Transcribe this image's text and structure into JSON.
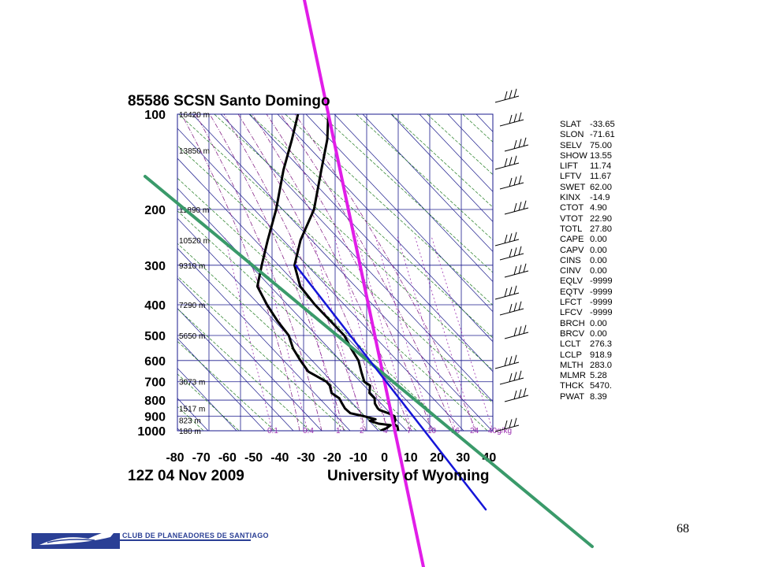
{
  "station_title": "85586 SCSN Santo Domingo",
  "date_label": "12Z 04 Nov 2009",
  "source_label": "University of Wyoming",
  "page_number": "68",
  "logo_text": "CLUB DE PLANEADORES DE SANTIAGO",
  "colors": {
    "temperature": "#000000",
    "dewpoint": "#000000",
    "isotherm_grid": "#1a1a8c",
    "dry_adiabat": "#1e7a1e",
    "moist_adiabat": "#8a2a8a",
    "mixing_ratio": "#9b30b0",
    "overlay_magenta": "#e11de8",
    "overlay_blue": "#1515d8",
    "overlay_green": "#3a9a6a",
    "logo": "#2a3f95"
  },
  "chart_data": {
    "type": "skew-t",
    "xlabel": "",
    "ylabel": "",
    "xlim": [
      -80,
      40
    ],
    "x_ticks": [
      "-80",
      "-70",
      "-60",
      "-50",
      "-40",
      "-30",
      "-20",
      "-10",
      "0",
      "10",
      "20",
      "30",
      "40"
    ],
    "y_scale": "log",
    "ylim": [
      1000,
      100
    ],
    "pressure_levels": [
      {
        "p": 100,
        "label": "100",
        "height": "16420 m"
      },
      {
        "p": 200,
        "label": "200",
        "height": "11890 m"
      },
      {
        "p": 300,
        "label": "300",
        "height": "9310 m"
      },
      {
        "p": 400,
        "label": "400",
        "height": "7290 m"
      },
      {
        "p": 500,
        "label": "500",
        "height": "5650 m"
      },
      {
        "p": 600,
        "label": "600",
        "height": ""
      },
      {
        "p": 700,
        "label": "700",
        "height": "3073 m"
      },
      {
        "p": 800,
        "label": "800",
        "height": ""
      },
      {
        "p": 850,
        "label": "",
        "height": "1517 m"
      },
      {
        "p": 900,
        "label": "900",
        "height": ""
      },
      {
        "p": 925,
        "label": "",
        "height": "823 m"
      },
      {
        "p": 1000,
        "label": "1000",
        "height": "180 m"
      }
    ],
    "extra_height_labels": [
      {
        "p": 130,
        "height": "13850 m"
      },
      {
        "p": 250,
        "height": "10520 m"
      }
    ],
    "mixing_ratio_labels": [
      "0.1",
      "0.4",
      "1",
      "2",
      "4",
      "7",
      "10",
      "16",
      "24",
      "40g/kg"
    ],
    "series": [
      {
        "name": "",
        "role": "temperature",
        "points": [
          [
            1000,
            17
          ],
          [
            970,
            16
          ],
          [
            950,
            14
          ],
          [
            925,
            14
          ],
          [
            900,
            13
          ],
          [
            880,
            10
          ],
          [
            860,
            6
          ],
          [
            850,
            5
          ],
          [
            820,
            3
          ],
          [
            790,
            2
          ],
          [
            760,
            -1
          ],
          [
            720,
            -2
          ],
          [
            700,
            -5
          ],
          [
            650,
            -8
          ],
          [
            600,
            -11
          ],
          [
            550,
            -16
          ],
          [
            500,
            -21
          ],
          [
            450,
            -29
          ],
          [
            400,
            -38
          ],
          [
            350,
            -47
          ],
          [
            300,
            -53
          ],
          [
            250,
            -55
          ],
          [
            200,
            -55
          ],
          [
            150,
            -59
          ],
          [
            120,
            -62
          ],
          [
            100,
            -66
          ]
        ]
      },
      {
        "name": "",
        "role": "dewpoint",
        "points": [
          [
            1000,
            10
          ],
          [
            980,
            12
          ],
          [
            960,
            13
          ],
          [
            950,
            8
          ],
          [
            930,
            4
          ],
          [
            920,
            6
          ],
          [
            900,
            1
          ],
          [
            880,
            -5
          ],
          [
            860,
            -7
          ],
          [
            850,
            -8
          ],
          [
            820,
            -10
          ],
          [
            790,
            -12
          ],
          [
            760,
            -16
          ],
          [
            720,
            -18
          ],
          [
            700,
            -20
          ],
          [
            650,
            -29
          ],
          [
            600,
            -34
          ],
          [
            550,
            -39
          ],
          [
            500,
            -43
          ],
          [
            450,
            -50
          ],
          [
            400,
            -57
          ],
          [
            350,
            -64
          ],
          [
            300,
            -66
          ],
          [
            250,
            -68
          ],
          [
            200,
            -70
          ],
          [
            150,
            -74
          ],
          [
            120,
            -76
          ],
          [
            100,
            -78
          ]
        ]
      }
    ],
    "stability_indices": [
      {
        "name": "SLAT",
        "value": "-33.65"
      },
      {
        "name": "SLON",
        "value": "-71.61"
      },
      {
        "name": "SELV",
        "value": "75.00"
      },
      {
        "name": "SHOW",
        "value": "13.55"
      },
      {
        "name": "LIFT",
        "value": "11.74"
      },
      {
        "name": "LFTV",
        "value": "11.67"
      },
      {
        "name": "SWET",
        "value": "62.00"
      },
      {
        "name": "KINX",
        "value": "-14.9"
      },
      {
        "name": "CTOT",
        "value": "4.90"
      },
      {
        "name": "VTOT",
        "value": "22.90"
      },
      {
        "name": "TOTL",
        "value": "27.80"
      },
      {
        "name": "CAPE",
        "value": "0.00"
      },
      {
        "name": "CAPV",
        "value": "0.00"
      },
      {
        "name": "CINS",
        "value": "0.00"
      },
      {
        "name": "CINV",
        "value": "0.00"
      },
      {
        "name": "EQLV",
        "value": "-9999"
      },
      {
        "name": "EQTV",
        "value": "-9999"
      },
      {
        "name": "LFCT",
        "value": "-9999"
      },
      {
        "name": "LFCV",
        "value": "-9999"
      },
      {
        "name": "BRCH",
        "value": "0.00"
      },
      {
        "name": "BRCV",
        "value": "0.00"
      },
      {
        "name": "LCLT",
        "value": "276.3"
      },
      {
        "name": "LCLP",
        "value": "918.9"
      },
      {
        "name": "MLTH",
        "value": "283.0"
      },
      {
        "name": "MLMR",
        "value": "5.28"
      },
      {
        "name": "THCK",
        "value": "5470."
      },
      {
        "name": "PWAT",
        "value": "8.39"
      }
    ]
  }
}
